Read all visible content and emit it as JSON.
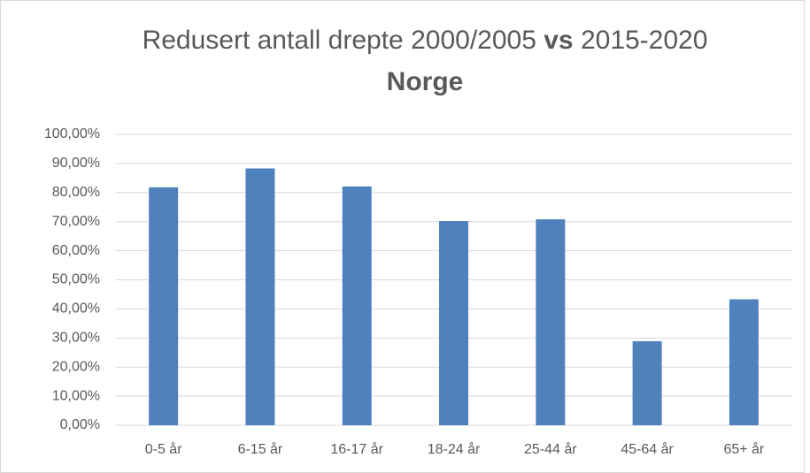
{
  "chart_data": {
    "type": "bar",
    "title": "Redusert antall drepte 2000/2005 vs 2015-2020 Norge",
    "title_bold": [
      "vs",
      "Norge"
    ],
    "categories": [
      "0-5 år",
      "6-15 år",
      "16-17 år",
      "18-24 år",
      "25-44 år",
      "45-64 år",
      "65+ år"
    ],
    "values": [
      81.8,
      88.3,
      82.1,
      70.2,
      70.8,
      28.9,
      43.3
    ],
    "color": "#4f81bd",
    "ylim": [
      0,
      100
    ],
    "yticks": [
      {
        "value": 0,
        "label": "0,00%"
      },
      {
        "value": 10,
        "label": "10,00%"
      },
      {
        "value": 20,
        "label": "20,00%"
      },
      {
        "value": 30,
        "label": "30,00%"
      },
      {
        "value": 40,
        "label": "40,00%"
      },
      {
        "value": 50,
        "label": "50,00%"
      },
      {
        "value": 60,
        "label": "60,00%"
      },
      {
        "value": 70,
        "label": "70,00%"
      },
      {
        "value": 80,
        "label": "80,00%"
      },
      {
        "value": 90,
        "label": "90,00%"
      },
      {
        "value": 100,
        "label": "100,00%"
      }
    ],
    "grid": true
  }
}
